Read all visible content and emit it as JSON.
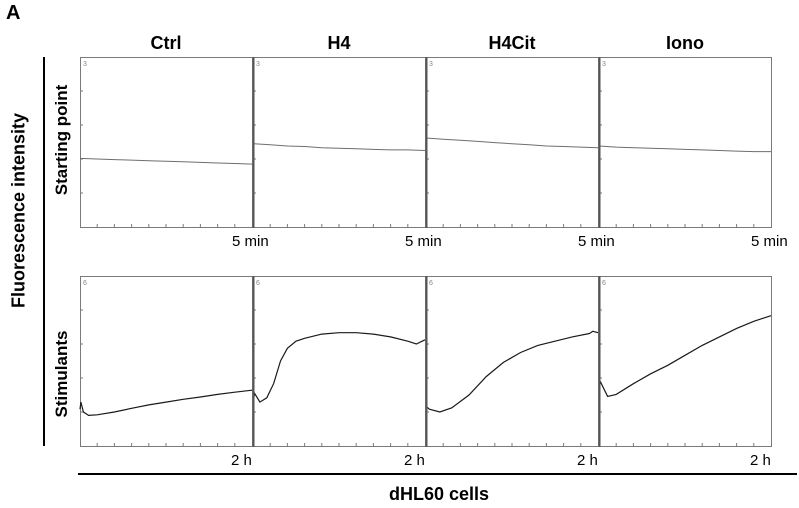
{
  "panel_label": "A",
  "y_axis_title": "Fluorescence intensity",
  "x_axis_title": "dHL60 cells",
  "chart_data": [
    {
      "type": "line",
      "row_label": "Starting point",
      "x_end_label": "5 min",
      "corner_tick": "3",
      "series": [
        {
          "name": "Ctrl",
          "x": [
            0,
            0.1,
            0.2,
            0.3,
            0.4,
            0.5,
            0.6,
            0.7,
            0.8,
            0.9,
            1.0
          ],
          "y": [
            1.21,
            1.2,
            1.19,
            1.18,
            1.17,
            1.16,
            1.15,
            1.14,
            1.13,
            1.12,
            1.11
          ]
        },
        {
          "name": "H4",
          "x": [
            0,
            0.1,
            0.2,
            0.3,
            0.4,
            0.5,
            0.6,
            0.7,
            0.8,
            0.9,
            1.0
          ],
          "y": [
            1.47,
            1.45,
            1.43,
            1.42,
            1.4,
            1.39,
            1.38,
            1.37,
            1.36,
            1.36,
            1.35
          ]
        },
        {
          "name": "H4Cit",
          "x": [
            0,
            0.1,
            0.2,
            0.3,
            0.4,
            0.5,
            0.6,
            0.7,
            0.8,
            0.9,
            1.0
          ],
          "y": [
            1.57,
            1.55,
            1.53,
            1.51,
            1.49,
            1.47,
            1.45,
            1.43,
            1.42,
            1.41,
            1.4
          ]
        },
        {
          "name": "Iono",
          "x": [
            0,
            0.1,
            0.2,
            0.3,
            0.4,
            0.5,
            0.6,
            0.7,
            0.8,
            0.9,
            1.0
          ],
          "y": [
            1.43,
            1.41,
            1.4,
            1.39,
            1.38,
            1.37,
            1.36,
            1.35,
            1.34,
            1.33,
            1.33
          ]
        }
      ],
      "xlim": [
        0,
        1
      ],
      "ylim": [
        0,
        3
      ]
    },
    {
      "type": "line",
      "row_label": "Stimulants",
      "x_end_label": "2 h",
      "corner_tick": "6",
      "series": [
        {
          "name": "Ctrl",
          "x": [
            0,
            0.005,
            0.02,
            0.05,
            0.1,
            0.2,
            0.3,
            0.4,
            0.5,
            0.6,
            0.7,
            0.8,
            0.9,
            1.0
          ],
          "y": [
            1.3,
            1.55,
            1.2,
            1.08,
            1.1,
            1.2,
            1.33,
            1.45,
            1.55,
            1.65,
            1.73,
            1.82,
            1.9,
            1.97
          ]
        },
        {
          "name": "H4",
          "x": [
            0,
            0.01,
            0.04,
            0.08,
            0.12,
            0.16,
            0.2,
            0.25,
            0.3,
            0.4,
            0.5,
            0.6,
            0.7,
            0.8,
            0.9,
            0.95,
            1.0
          ],
          "y": [
            1.6,
            1.85,
            1.55,
            1.7,
            2.2,
            3.0,
            3.45,
            3.7,
            3.8,
            3.95,
            4.0,
            4.0,
            3.95,
            3.85,
            3.7,
            3.6,
            3.75
          ]
        },
        {
          "name": "H4Cit",
          "x": [
            0,
            0.02,
            0.08,
            0.15,
            0.25,
            0.35,
            0.45,
            0.55,
            0.65,
            0.75,
            0.85,
            0.95,
            0.97,
            1.0
          ],
          "y": [
            1.4,
            1.3,
            1.2,
            1.35,
            1.8,
            2.45,
            2.95,
            3.3,
            3.55,
            3.7,
            3.85,
            3.97,
            4.05,
            4.0
          ]
        },
        {
          "name": "Iono",
          "x": [
            0,
            0.01,
            0.05,
            0.1,
            0.2,
            0.3,
            0.4,
            0.5,
            0.6,
            0.7,
            0.8,
            0.9,
            1.0
          ],
          "y": [
            2.1,
            2.25,
            1.75,
            1.82,
            2.2,
            2.55,
            2.85,
            3.2,
            3.55,
            3.85,
            4.15,
            4.4,
            4.6
          ]
        }
      ],
      "xlim": [
        0,
        1
      ],
      "ylim": [
        0,
        6
      ]
    }
  ],
  "colors": {
    "trace_top": "#6e6e6e",
    "trace_bottom": "#1a1a1a",
    "frame": "#7a7a7a",
    "divider": "#555555",
    "axis_bar": "#000000"
  }
}
